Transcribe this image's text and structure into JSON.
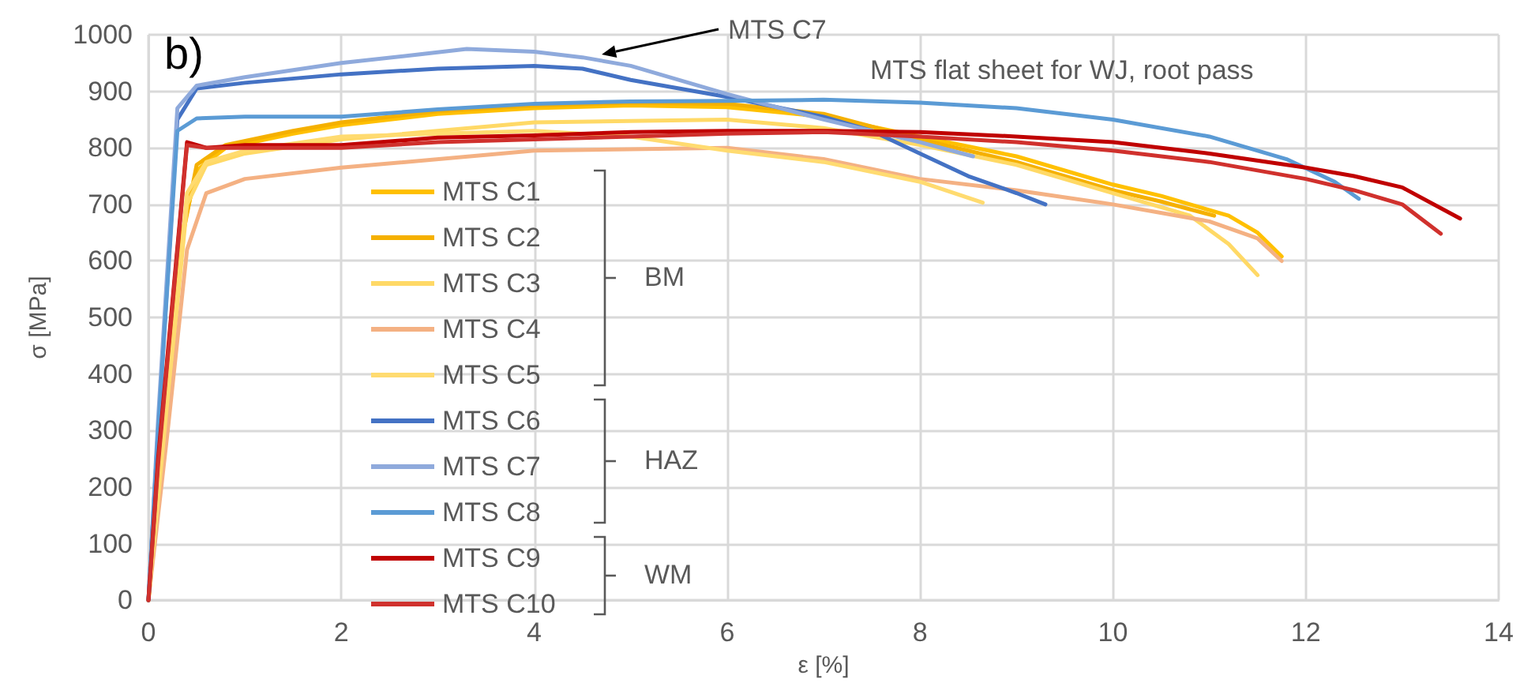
{
  "chart_data": {
    "type": "line",
    "title": "MTS flat sheet for WJ, root pass",
    "xlabel": "ε [%]",
    "ylabel": "σ [MPa]",
    "xlim": [
      0,
      14
    ],
    "xticks": [
      0,
      2,
      4,
      6,
      8,
      10,
      12,
      14
    ],
    "ylim": [
      0,
      1000
    ],
    "yticks": [
      0,
      100,
      200,
      300,
      400,
      500,
      600,
      700,
      800,
      900,
      1000
    ],
    "grid": true,
    "legend": "left",
    "marker": "none",
    "line_style": "solid",
    "annotations": [
      "b)",
      {
        "text": "MTS C7",
        "x": 4.7,
        "y": 965
      },
      "BM",
      "HAZ",
      "WM"
    ],
    "series": [
      {
        "name": "MTS C1",
        "color": "#ffc000",
        "x": [
          0,
          0.15,
          0.35,
          0.5,
          0.8,
          1.5,
          2,
          3,
          4,
          5,
          6,
          7,
          8,
          9,
          10,
          10.5,
          11.2,
          11.5,
          11.75
        ],
        "values": [
          0,
          300,
          650,
          760,
          800,
          825,
          840,
          860,
          870,
          875,
          872,
          855,
          820,
          785,
          735,
          715,
          680,
          650,
          608
        ]
      },
      {
        "name": "MTS C2",
        "color": "#f5b000",
        "x": [
          0,
          0.15,
          0.35,
          0.5,
          0.8,
          1.5,
          2,
          3,
          4,
          5,
          6,
          7,
          8,
          9,
          10,
          10.5,
          11.05
        ],
        "values": [
          0,
          290,
          640,
          770,
          805,
          830,
          845,
          865,
          875,
          880,
          878,
          860,
          815,
          775,
          725,
          705,
          680
        ]
      },
      {
        "name": "MTS C3",
        "color": "#ffd966",
        "x": [
          0,
          0.2,
          0.4,
          0.6,
          1,
          2,
          4,
          6,
          7,
          8,
          9,
          10,
          10.8,
          11.2,
          11.5
        ],
        "values": [
          0,
          350,
          700,
          770,
          790,
          815,
          845,
          850,
          835,
          805,
          770,
          720,
          680,
          630,
          575
        ]
      },
      {
        "name": "MTS C4",
        "color": "#f4b183",
        "x": [
          0,
          0.2,
          0.4,
          0.6,
          1,
          2,
          4,
          6,
          7,
          8,
          9,
          10,
          11,
          11.5,
          11.75
        ],
        "values": [
          0,
          300,
          620,
          720,
          745,
          765,
          795,
          800,
          780,
          745,
          725,
          700,
          670,
          640,
          600
        ]
      },
      {
        "name": "MTS C5",
        "color": "#ffdb70",
        "x": [
          0,
          0.2,
          0.4,
          0.6,
          1,
          2,
          4,
          5,
          6,
          7,
          8,
          8.65
        ],
        "values": [
          0,
          360,
          720,
          775,
          795,
          820,
          830,
          820,
          795,
          775,
          740,
          703
        ]
      },
      {
        "name": "MTS C6",
        "color": "#4472c4",
        "x": [
          0,
          0.1,
          0.3,
          0.5,
          1,
          2,
          3,
          4,
          4.5,
          5,
          6,
          7,
          7.5,
          8,
          8.5,
          9,
          9.3
        ],
        "values": [
          0,
          300,
          850,
          905,
          915,
          930,
          940,
          945,
          940,
          920,
          890,
          855,
          830,
          790,
          750,
          720,
          700
        ]
      },
      {
        "name": "MTS C7",
        "color": "#8faadc",
        "x": [
          0,
          0.1,
          0.3,
          0.5,
          1,
          2,
          2.8,
          3.3,
          4,
          4.5,
          5,
          6,
          7,
          7.5,
          8,
          8.55
        ],
        "values": [
          0,
          320,
          870,
          910,
          925,
          950,
          965,
          975,
          970,
          960,
          945,
          895,
          850,
          830,
          810,
          785
        ]
      },
      {
        "name": "MTS C8",
        "color": "#5b9bd5",
        "x": [
          0,
          0.1,
          0.3,
          0.5,
          1,
          2,
          3,
          4,
          5,
          6,
          7,
          8,
          9,
          10,
          11,
          11.8,
          12.3,
          12.55
        ],
        "values": [
          0,
          300,
          830,
          852,
          855,
          855,
          868,
          878,
          882,
          883,
          885,
          880,
          870,
          850,
          820,
          780,
          740,
          710
        ]
      },
      {
        "name": "MTS C9",
        "color": "#c00000",
        "x": [
          0,
          0.1,
          0.4,
          0.6,
          1,
          2,
          3,
          4,
          5,
          6,
          7,
          8,
          9,
          10,
          11,
          12,
          12.5,
          13,
          13.6
        ],
        "values": [
          0,
          250,
          810,
          800,
          805,
          805,
          818,
          822,
          828,
          830,
          830,
          828,
          820,
          810,
          790,
          765,
          750,
          730,
          675
        ]
      },
      {
        "name": "MTS C10",
        "color": "#d0312d",
        "x": [
          0,
          0.1,
          0.4,
          0.6,
          1,
          2,
          3,
          4,
          5,
          6,
          7,
          8,
          9,
          10,
          11,
          12,
          12.5,
          13,
          13.4
        ],
        "values": [
          0,
          240,
          805,
          800,
          800,
          800,
          810,
          815,
          820,
          825,
          828,
          820,
          810,
          795,
          775,
          745,
          725,
          700,
          648
        ]
      }
    ]
  }
}
